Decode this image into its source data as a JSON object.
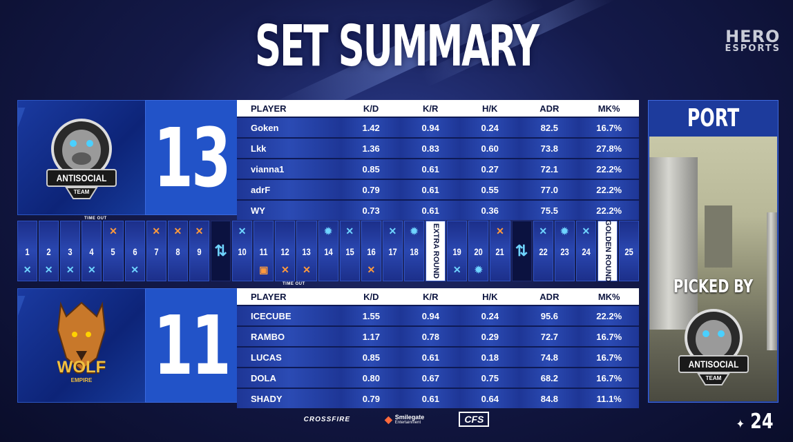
{
  "title": "SET SUMMARY",
  "brand": {
    "line1": "HERO",
    "line2": "ESPORTS"
  },
  "columns": [
    "PLAYER",
    "K/D",
    "K/R",
    "H/K",
    "ADR",
    "MK%"
  ],
  "team1": {
    "logo_line1": "ANTISOCIAL",
    "logo_line2": "TEAM",
    "score": "13",
    "players": [
      {
        "name": "Goken",
        "kd": "1.42",
        "kr": "0.94",
        "hk": "0.24",
        "adr": "82.5",
        "mk": "16.7%"
      },
      {
        "name": "Lkk",
        "kd": "1.36",
        "kr": "0.83",
        "hk": "0.60",
        "adr": "73.8",
        "mk": "27.8%"
      },
      {
        "name": "vianna1",
        "kd": "0.85",
        "kr": "0.61",
        "hk": "0.27",
        "adr": "72.1",
        "mk": "22.2%"
      },
      {
        "name": "adrF",
        "kd": "0.79",
        "kr": "0.61",
        "hk": "0.55",
        "adr": "77.0",
        "mk": "22.2%"
      },
      {
        "name": "WY",
        "kd": "0.73",
        "kr": "0.61",
        "hk": "0.36",
        "adr": "75.5",
        "mk": "22.2%"
      }
    ]
  },
  "team2": {
    "logo_line1": "WOLF",
    "logo_line2": "EMPIRE",
    "score": "11",
    "players": [
      {
        "name": "ICECUBE",
        "kd": "1.55",
        "kr": "0.94",
        "hk": "0.24",
        "adr": "95.6",
        "mk": "22.2%"
      },
      {
        "name": "RAMBO",
        "kd": "1.17",
        "kr": "0.78",
        "hk": "0.29",
        "adr": "72.7",
        "mk": "16.7%"
      },
      {
        "name": "LUCAS",
        "kd": "0.85",
        "kr": "0.61",
        "hk": "0.18",
        "adr": "74.8",
        "mk": "16.7%"
      },
      {
        "name": "DOLA",
        "kd": "0.80",
        "kr": "0.67",
        "hk": "0.75",
        "adr": "68.2",
        "mk": "16.7%"
      },
      {
        "name": "SHADY",
        "kd": "0.79",
        "kr": "0.61",
        "hk": "0.64",
        "adr": "84.8",
        "mk": "11.1%"
      }
    ]
  },
  "timeout_label": "TIME OUT",
  "extra_round_label": "EXTRA ROUND",
  "golden_round_label": "GOLDEN ROUND",
  "rounds": [
    {
      "n": "1",
      "top": "",
      "bot": "x"
    },
    {
      "n": "2",
      "top": "",
      "bot": "x"
    },
    {
      "n": "3",
      "top": "",
      "bot": "x"
    },
    {
      "n": "4",
      "top": "",
      "bot": "x"
    },
    {
      "n": "5",
      "top": "o",
      "bot": ""
    },
    {
      "n": "6",
      "top": "",
      "bot": "x"
    },
    {
      "n": "7",
      "top": "o",
      "bot": ""
    },
    {
      "n": "8",
      "top": "o",
      "bot": ""
    },
    {
      "n": "9",
      "top": "o",
      "bot": ""
    },
    {
      "n": "",
      "type": "switch"
    },
    {
      "n": "10",
      "top": "x",
      "bot": ""
    },
    {
      "n": "11",
      "top": "",
      "bot": "b"
    },
    {
      "n": "12",
      "top": "",
      "bot": "ox"
    },
    {
      "n": "13",
      "top": "",
      "bot": "ox"
    },
    {
      "n": "14",
      "top": "g",
      "bot": ""
    },
    {
      "n": "15",
      "top": "x",
      "bot": ""
    },
    {
      "n": "16",
      "top": "",
      "bot": "ox"
    },
    {
      "n": "17",
      "top": "x",
      "bot": ""
    },
    {
      "n": "18",
      "top": "g",
      "bot": ""
    },
    {
      "n": "",
      "type": "extra"
    },
    {
      "n": "19",
      "top": "",
      "bot": "x"
    },
    {
      "n": "20",
      "top": "",
      "bot": "g"
    },
    {
      "n": "21",
      "top": "o",
      "bot": ""
    },
    {
      "n": "",
      "type": "switch"
    },
    {
      "n": "22",
      "top": "x",
      "bot": ""
    },
    {
      "n": "23",
      "top": "g",
      "bot": ""
    },
    {
      "n": "24",
      "top": "x",
      "bot": ""
    },
    {
      "n": "",
      "type": "golden"
    },
    {
      "n": "25",
      "top": "",
      "bot": ""
    }
  ],
  "map": {
    "name": "PORT",
    "picked_by": "PICKED BY",
    "picker_line1": "ANTISOCIAL",
    "picker_line2": "TEAM"
  },
  "footer": {
    "crossfire": "CROSSFIRE",
    "smilegate": "Smilegate",
    "smilegate_sub": "Entertainment",
    "cfs": "CFS"
  },
  "year": "24",
  "colors": {
    "accent_blue": "#2253c8",
    "win_cyan": "#6fd4ff",
    "win_orange": "#ff9a3c",
    "header_bg": "#ffffff"
  }
}
